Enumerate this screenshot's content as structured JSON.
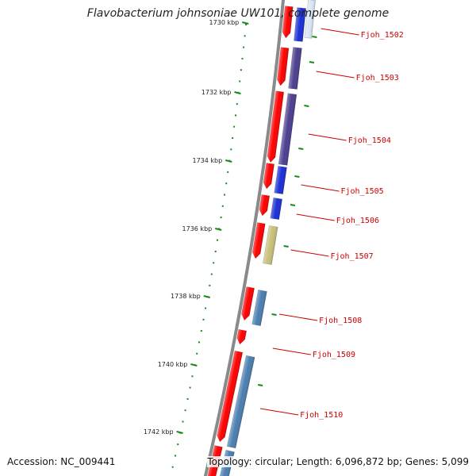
{
  "title": "Flavobacterium johnsoniae UW101, complete genome",
  "footer": {
    "accession": "Accession: NC_009441",
    "summary": "Topology: circular; Length: 6,096,872 bp; Genes: 5,099"
  },
  "ruler": {
    "labels": [
      "1730 kbp",
      "1732 kbp",
      "1734 kbp",
      "1736 kbp",
      "1738 kbp",
      "1740 kbp",
      "1742 kbp"
    ]
  },
  "genes": [
    {
      "label": "Fjoh_1502",
      "color": "#1a2fd6"
    },
    {
      "label": "Fjoh_1503",
      "color": "#4b3f8f"
    },
    {
      "label": "Fjoh_1504",
      "color": "#4b3f8f"
    },
    {
      "label": "Fjoh_1505",
      "color": "#1a2fd6"
    },
    {
      "label": "Fjoh_1506",
      "color": "#1a2fd6"
    },
    {
      "label": "Fjoh_1507",
      "color": "#c8c07a"
    },
    {
      "label": "Fjoh_1508",
      "color": "#4a7fb0"
    },
    {
      "label": "Fjoh_1509",
      "color": "#4a7fb0"
    },
    {
      "label": "Fjoh_1510",
      "color": "#4a7fb0"
    }
  ],
  "colors": {
    "cds": "#ff0000",
    "backbone": "#8a8a8a",
    "ruler_ticks": "#1a8a1a",
    "label": "#cc0000"
  }
}
